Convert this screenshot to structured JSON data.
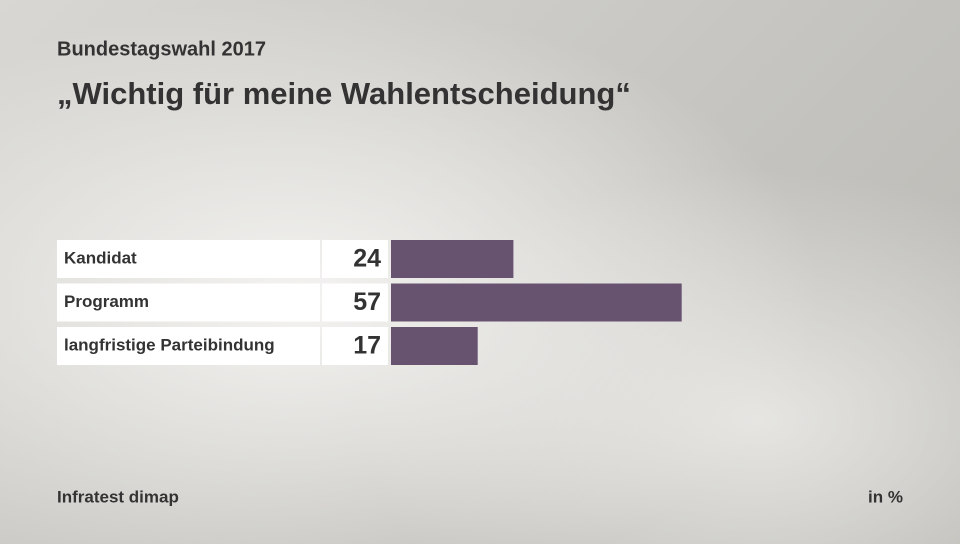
{
  "chart_data": {
    "type": "bar",
    "orientation": "horizontal",
    "subtitle": "Bundestagswahl 2017",
    "title": "„Wichtig für meine Wahlentscheidung“",
    "categories": [
      "Kandidat",
      "Programm",
      "langfristige Parteibindung"
    ],
    "values": [
      24,
      57,
      17
    ],
    "color": "#675370",
    "source": "Infratest dimap",
    "unit": "in %"
  }
}
